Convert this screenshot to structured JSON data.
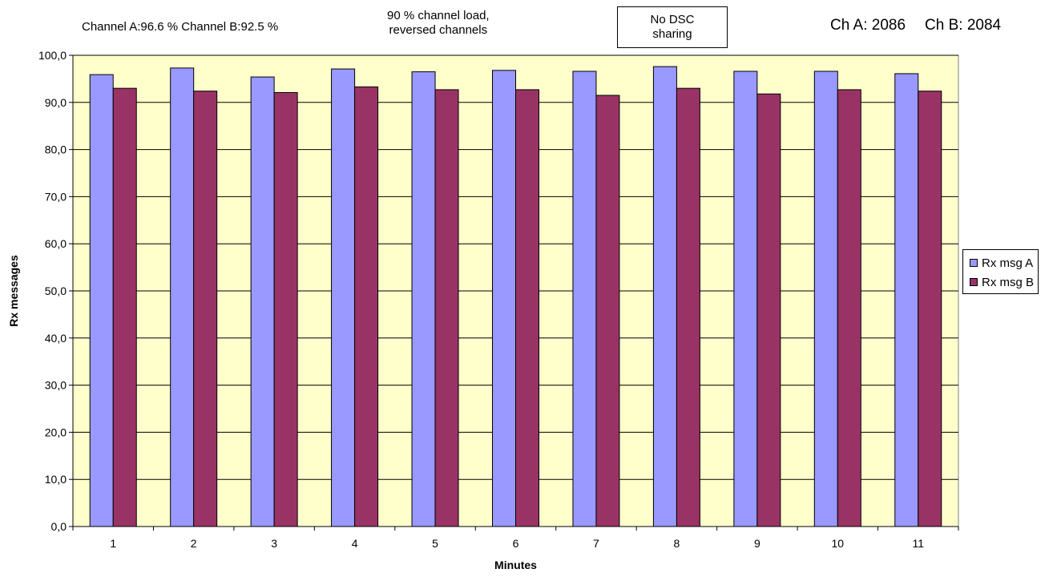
{
  "annotations": {
    "channels_summary": "Channel A:96.6 %   Channel B:92.5 %",
    "load_line1": "90 % channel load,",
    "load_line2": "reversed channels",
    "dsc_line1": "No DSC",
    "dsc_line2": "sharing",
    "count_a": "Ch A: 2086",
    "count_b": "Ch B: 2084"
  },
  "chart_data": {
    "type": "bar",
    "title": "",
    "xlabel": "Minutes",
    "ylabel": "Rx messages",
    "categories": [
      "1",
      "2",
      "3",
      "4",
      "5",
      "6",
      "7",
      "8",
      "9",
      "10",
      "11"
    ],
    "series": [
      {
        "name": "Rx msg A",
        "color": "#9999ff",
        "values": [
          95.9,
          97.3,
          95.4,
          97.1,
          96.5,
          96.8,
          96.6,
          97.6,
          96.6,
          96.6,
          96.1
        ]
      },
      {
        "name": "Rx msg B",
        "color": "#993366",
        "values": [
          93.0,
          92.4,
          92.1,
          93.3,
          92.7,
          92.7,
          91.5,
          93.0,
          91.8,
          92.7,
          92.4
        ]
      }
    ],
    "ylim": [
      0,
      100
    ],
    "yticks": [
      "0,0",
      "10,0",
      "20,0",
      "30,0",
      "40,0",
      "50,0",
      "60,0",
      "70,0",
      "80,0",
      "90,0",
      "100,0"
    ],
    "grid": true,
    "plot_background": "#ffffcc",
    "legend_position": "right"
  }
}
